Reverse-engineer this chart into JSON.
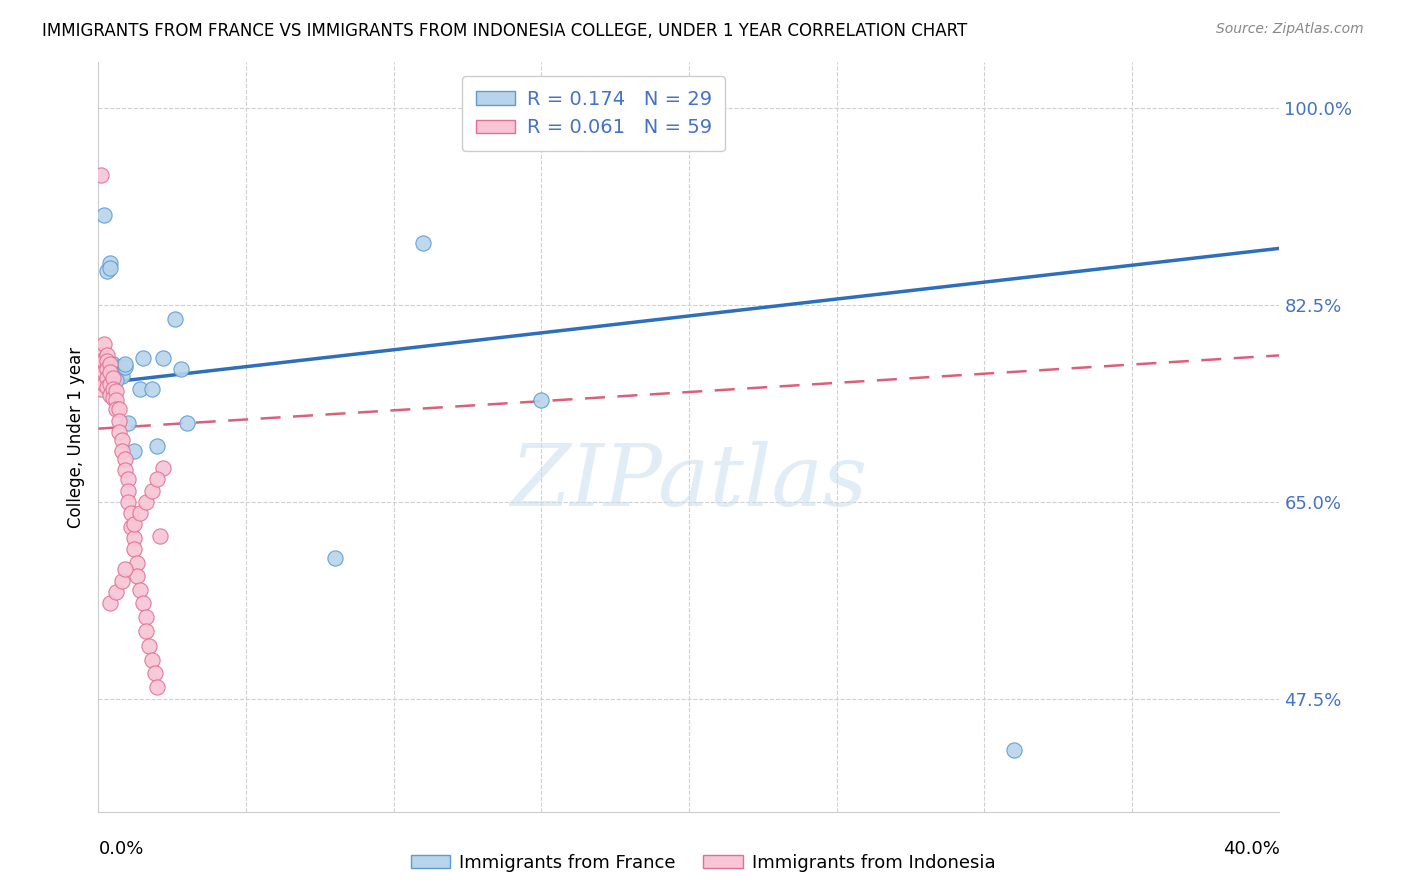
{
  "title": "IMMIGRANTS FROM FRANCE VS IMMIGRANTS FROM INDONESIA COLLEGE, UNDER 1 YEAR CORRELATION CHART",
  "source": "Source: ZipAtlas.com",
  "ylabel": "College, Under 1 year",
  "xmin": 0.0,
  "xmax": 0.4,
  "ymin": 0.375,
  "ymax": 1.04,
  "france_color": "#b8d4ea",
  "france_edge_color": "#5b9bd5",
  "france_line_color": "#2e6fbb",
  "indonesia_color": "#f7c5d5",
  "indonesia_edge_color": "#e07090",
  "indonesia_line_color": "#d9607a",
  "R_N_color": "#4472c4",
  "yticks": [
    1.0,
    0.825,
    0.65,
    0.475
  ],
  "ytick_labels": [
    "100.0%",
    "82.5%",
    "65.0%",
    "47.5%"
  ],
  "xtick_left_label": "0.0%",
  "xtick_right_label": "40.0%",
  "legend_france_R": "0.174",
  "legend_france_N": "29",
  "legend_indonesia_R": "0.061",
  "legend_indonesia_N": "59",
  "france_x": [
    0.001,
    0.001,
    0.002,
    0.003,
    0.004,
    0.005,
    0.005,
    0.006,
    0.007,
    0.007,
    0.008,
    0.009,
    0.009,
    0.01,
    0.012,
    0.014,
    0.015,
    0.018,
    0.02,
    0.022,
    0.026,
    0.028,
    0.03,
    0.08,
    0.11,
    0.15,
    0.31,
    0.004,
    0.006
  ],
  "france_y": [
    0.78,
    0.76,
    0.905,
    0.855,
    0.862,
    0.77,
    0.772,
    0.765,
    0.767,
    0.77,
    0.762,
    0.77,
    0.772,
    0.72,
    0.695,
    0.75,
    0.778,
    0.75,
    0.7,
    0.778,
    0.812,
    0.768,
    0.72,
    0.6,
    0.88,
    0.74,
    0.43,
    0.858,
    0.758
  ],
  "indonesia_x": [
    0.001,
    0.001,
    0.001,
    0.001,
    0.001,
    0.002,
    0.002,
    0.002,
    0.002,
    0.003,
    0.003,
    0.003,
    0.003,
    0.003,
    0.004,
    0.004,
    0.004,
    0.004,
    0.005,
    0.005,
    0.005,
    0.006,
    0.006,
    0.006,
    0.007,
    0.007,
    0.007,
    0.008,
    0.008,
    0.009,
    0.009,
    0.01,
    0.01,
    0.01,
    0.011,
    0.011,
    0.012,
    0.012,
    0.013,
    0.013,
    0.014,
    0.015,
    0.016,
    0.016,
    0.017,
    0.018,
    0.019,
    0.02,
    0.021,
    0.022,
    0.012,
    0.014,
    0.016,
    0.018,
    0.02,
    0.004,
    0.006,
    0.008,
    0.009
  ],
  "indonesia_y": [
    0.94,
    0.78,
    0.775,
    0.76,
    0.75,
    0.79,
    0.775,
    0.765,
    0.755,
    0.78,
    0.775,
    0.768,
    0.76,
    0.752,
    0.772,
    0.765,
    0.755,
    0.745,
    0.76,
    0.75,
    0.742,
    0.748,
    0.74,
    0.732,
    0.732,
    0.722,
    0.712,
    0.705,
    0.695,
    0.688,
    0.678,
    0.67,
    0.66,
    0.65,
    0.64,
    0.628,
    0.618,
    0.608,
    0.596,
    0.584,
    0.572,
    0.56,
    0.548,
    0.535,
    0.522,
    0.51,
    0.498,
    0.486,
    0.62,
    0.68,
    0.63,
    0.64,
    0.65,
    0.66,
    0.67,
    0.56,
    0.57,
    0.58,
    0.59
  ]
}
